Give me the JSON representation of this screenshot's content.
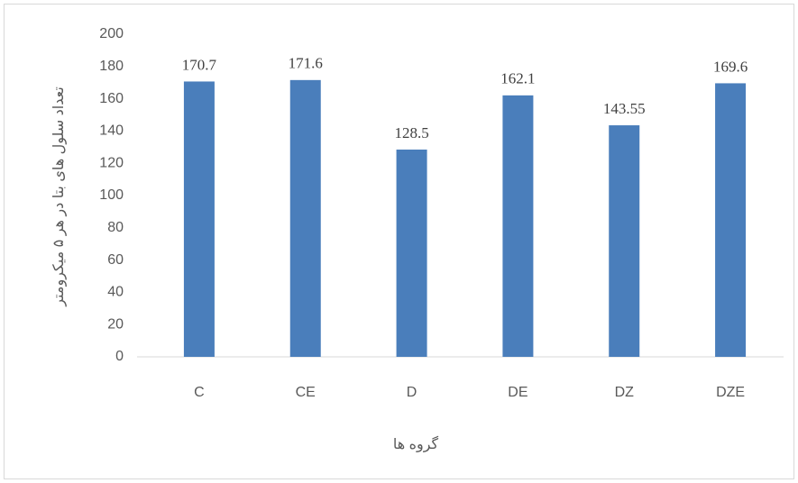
{
  "chart_data": {
    "type": "bar",
    "x_label": "گروه ها",
    "y_label": "تعداد سلول های بتا در هر ۵ میکرومتر",
    "categories": [
      "C",
      "CE",
      "D",
      "DE",
      "DZ",
      "DZE"
    ],
    "values": [
      170.7,
      171.6,
      128.5,
      162.1,
      143.55,
      169.6
    ],
    "color": "#4a7ebb",
    "ylim": [
      0,
      200
    ],
    "yticks": [
      0,
      20,
      40,
      60,
      80,
      100,
      120,
      140,
      160,
      180,
      200
    ],
    "grid": false
  }
}
